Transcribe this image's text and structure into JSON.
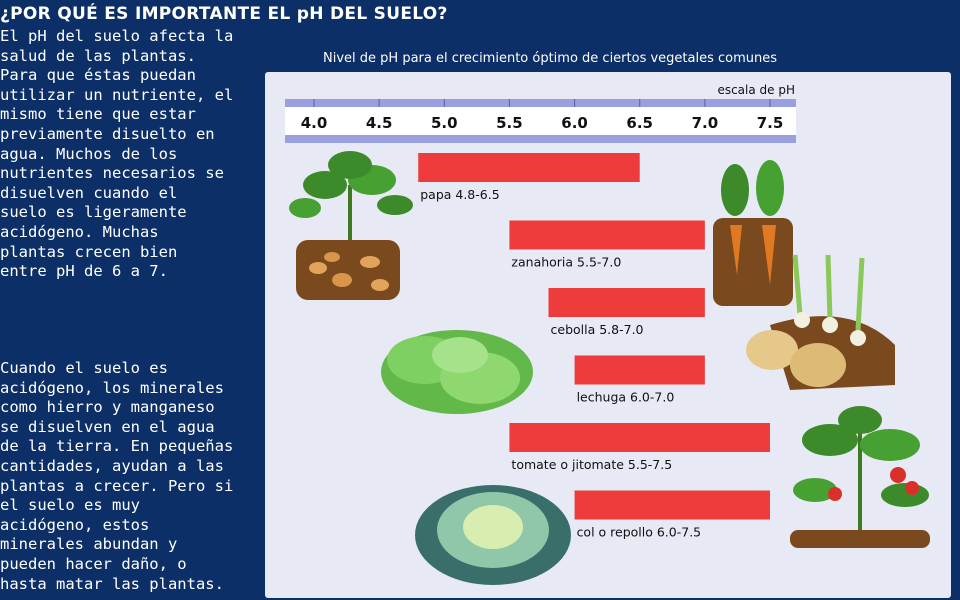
{
  "header": {
    "title": "¿POR QUÉ ES IMPORTANTE EL pH DEL SUELO?"
  },
  "text": {
    "paragraph1": "El pH del suelo afecta la\nsalud de las plantas.\nPara que éstas puedan\nutilizar un nutriente, el\nmismo tiene que estar\npreviamente disuelto en\nagua. Muchos de los\nnutrientes necesarios se\ndisuelven cuando el\nsuelo es ligeramente\nacidógeno. Muchas\nplantas crecen bien\nentre pH de 6 a 7.",
    "paragraph2": "Cuando el suelo es\nacidógeno, los minerales\ncomo hierro y manganeso\nse disuelven en el agua\nde la tierra. En pequeñas\ncantidades, ayudan a las\nplantas a crecer. Pero si\nel suelo es muy\nacidógeno, estos\nminerales abundan y\npueden hacer daño, o\nhasta matar las plantas."
  },
  "chart_data": {
    "type": "bar",
    "orientation": "horizontal-range",
    "title": "Nivel de pH para el crecimiento óptimo de ciertos vegetales comunes",
    "scale_label": "escala de pH",
    "xlim": [
      4.0,
      7.5
    ],
    "ticks": [
      "4.0",
      "4.5",
      "5.0",
      "5.5",
      "6.0",
      "6.5",
      "7.0",
      "7.5"
    ],
    "bar_color": "#ee3b3b",
    "series": [
      {
        "label": "papa 4.8-6.5",
        "min": 4.8,
        "max": 6.5,
        "icon": "potato-plant-icon"
      },
      {
        "label": "zanahoria 5.5-7.0",
        "min": 5.5,
        "max": 7.0,
        "icon": "carrot-icon"
      },
      {
        "label": "cebolla 5.8-7.0",
        "min": 5.8,
        "max": 7.0,
        "icon": "onion-icon"
      },
      {
        "label": "lechuga 6.0-7.0",
        "min": 6.0,
        "max": 7.0,
        "icon": "lettuce-icon"
      },
      {
        "label": "tomate o jitomate 5.5-7.5",
        "min": 5.5,
        "max": 7.5,
        "icon": "tomato-plant-icon"
      },
      {
        "label": "col o repollo 6.0-7.5",
        "min": 6.0,
        "max": 7.5,
        "icon": "cabbage-icon"
      }
    ]
  },
  "colors": {
    "background": "#0d2f68",
    "panel": "#e7e9f5",
    "scale_bar": "#9a9fe0",
    "bar": "#ee3b3b"
  }
}
